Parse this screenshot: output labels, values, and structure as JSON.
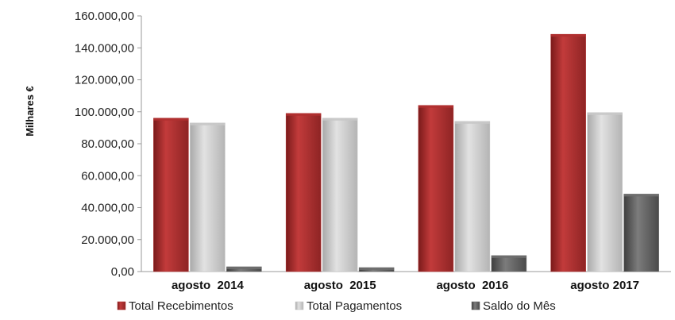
{
  "chart_data": {
    "type": "bar",
    "categories": [
      "agosto  2014",
      "agosto  2015",
      "agosto  2016",
      "agosto 2017"
    ],
    "series": [
      {
        "name": "Total Recebimentos",
        "values": [
          96000,
          99000,
          104000,
          148500
        ],
        "color": "#b03030"
      },
      {
        "name": "Total Pagamentos",
        "values": [
          93000,
          96000,
          94000,
          99500
        ],
        "color": "#c8c8c8"
      },
      {
        "name": "Saldo do Mês",
        "values": [
          3000,
          2500,
          10000,
          48500
        ],
        "color": "#6e6e6e"
      }
    ],
    "ylabel": "Milhares €",
    "ylim": [
      0,
      160000
    ],
    "yticks": [
      "0,00",
      "20.000,00",
      "40.000,00",
      "60.000,00",
      "80.000,00",
      "100.000,00",
      "120.000,00",
      "140.000,00",
      "160.000,00"
    ],
    "grid": false,
    "legend_position": "bottom"
  }
}
